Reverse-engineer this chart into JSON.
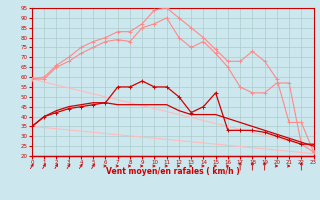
{
  "x": [
    0,
    1,
    2,
    3,
    4,
    5,
    6,
    7,
    8,
    9,
    10,
    11,
    12,
    13,
    14,
    15,
    16,
    17,
    18,
    19,
    20,
    21,
    22,
    23
  ],
  "line_straight1": [
    59,
    57.5,
    56,
    54.5,
    53,
    51.5,
    50,
    48.5,
    47,
    45.5,
    44,
    42.5,
    41,
    39.5,
    38,
    36.5,
    35,
    33.5,
    32,
    30.5,
    29,
    27.5,
    26,
    24.5
  ],
  "line_straight2": [
    35,
    34.4,
    33.8,
    33.2,
    32.6,
    32.0,
    31.4,
    30.8,
    30.2,
    29.6,
    29.0,
    28.4,
    27.8,
    27.2,
    26.6,
    26.0,
    25.4,
    24.8,
    24.2,
    23.6,
    23.0,
    22.4,
    21.8,
    21.2
  ],
  "line_rafalmax": [
    59,
    59,
    65,
    68,
    72,
    75,
    78,
    79,
    78,
    85,
    87,
    90,
    80,
    75,
    78,
    72,
    65,
    55,
    52,
    52,
    57,
    57,
    26,
    22
  ],
  "line_rafal2": [
    59,
    60,
    66,
    70,
    75,
    78,
    80,
    83,
    83,
    87,
    94,
    95,
    90,
    85,
    80,
    74,
    68,
    68,
    73,
    68,
    59,
    37,
    37,
    22
  ],
  "line_moyen1": [
    35,
    40,
    42,
    44,
    45,
    46,
    47,
    55,
    55,
    58,
    55,
    55,
    50,
    42,
    45,
    52,
    33,
    33,
    33,
    32,
    30,
    28,
    26,
    26
  ],
  "line_moyen2": [
    35,
    40,
    43,
    45,
    46,
    47,
    47,
    46,
    46,
    46,
    46,
    46,
    43,
    41,
    41,
    41,
    39,
    37,
    35,
    33,
    31,
    29,
    27,
    25
  ],
  "arrow_dirs": [
    45,
    45,
    45,
    45,
    45,
    45,
    90,
    90,
    90,
    90,
    90,
    90,
    90,
    90,
    90,
    90,
    90,
    0,
    0,
    0,
    90,
    90,
    0,
    45
  ],
  "ylim": [
    20,
    95
  ],
  "xlim": [
    0,
    23
  ],
  "yticks": [
    20,
    25,
    30,
    35,
    40,
    45,
    50,
    55,
    60,
    65,
    70,
    75,
    80,
    85,
    90,
    95
  ],
  "xticks": [
    0,
    1,
    2,
    3,
    4,
    5,
    6,
    7,
    8,
    9,
    10,
    11,
    12,
    13,
    14,
    15,
    16,
    17,
    18,
    19,
    20,
    21,
    22,
    23
  ],
  "xlabel": "Vent moyen/en rafales ( km/h )",
  "bg_color": "#cce8ee",
  "grid_color": "#aacccc",
  "color_pink_light": "#ffbbbb",
  "color_pink": "#ff8888",
  "color_red": "#cc0000",
  "color_darkred": "#990000"
}
